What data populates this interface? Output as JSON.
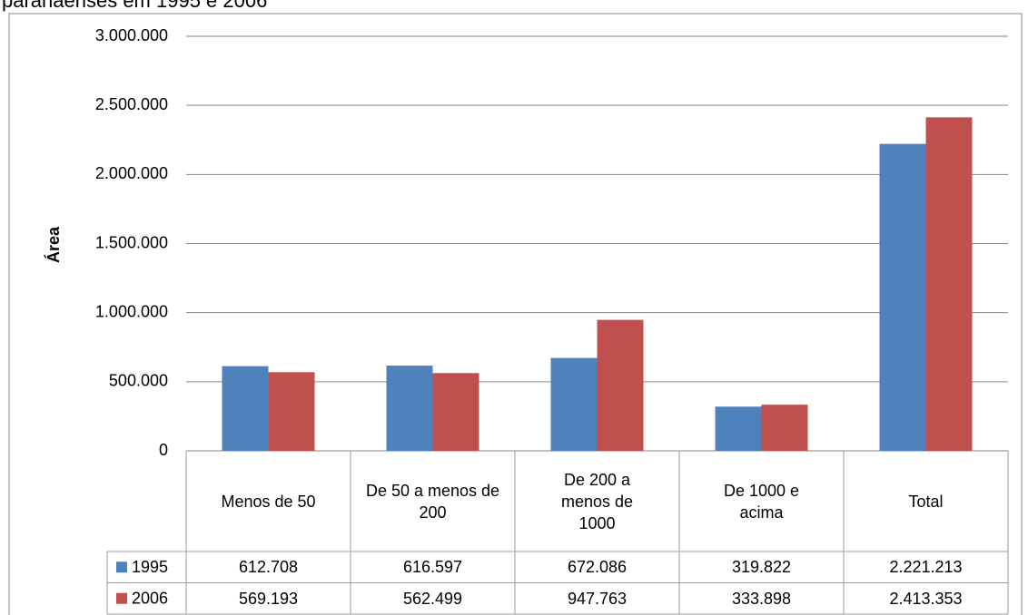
{
  "chart_data": {
    "type": "bar",
    "title": "paranaenses em 1995 e 2006",
    "y_label": "Área",
    "categories": [
      "Menos de 50",
      "De 50 a menos de 200",
      "De 200 a menos de 1000",
      "De 1000 e acima",
      "Total"
    ],
    "series": [
      {
        "name": "1995",
        "color": "#4f81bd",
        "values": [
          612708,
          616597,
          672086,
          319822,
          2221213
        ],
        "value_labels": [
          "612.708",
          "616.597",
          "672.086",
          "319.822",
          "2.221.213"
        ]
      },
      {
        "name": "2006",
        "color": "#c0504d",
        "values": [
          569193,
          562499,
          947763,
          333898,
          2413353
        ],
        "value_labels": [
          "569.193",
          "562.499",
          "947.763",
          "333.898",
          "2.413.353"
        ]
      }
    ],
    "ylim": [
      0,
      3000000
    ],
    "yticks": [
      0,
      {
        "value": 500000,
        "label": "500.000"
      },
      {
        "value": 1000000,
        "label": "1.000.000"
      },
      {
        "value": 1500000,
        "label": "1.500.000"
      },
      {
        "value": 2000000,
        "label": "2.000.000"
      },
      {
        "value": 2500000,
        "label": "2.500.000"
      },
      {
        "value": 3000000,
        "label": "3.000.000"
      }
    ],
    "grid": true
  }
}
